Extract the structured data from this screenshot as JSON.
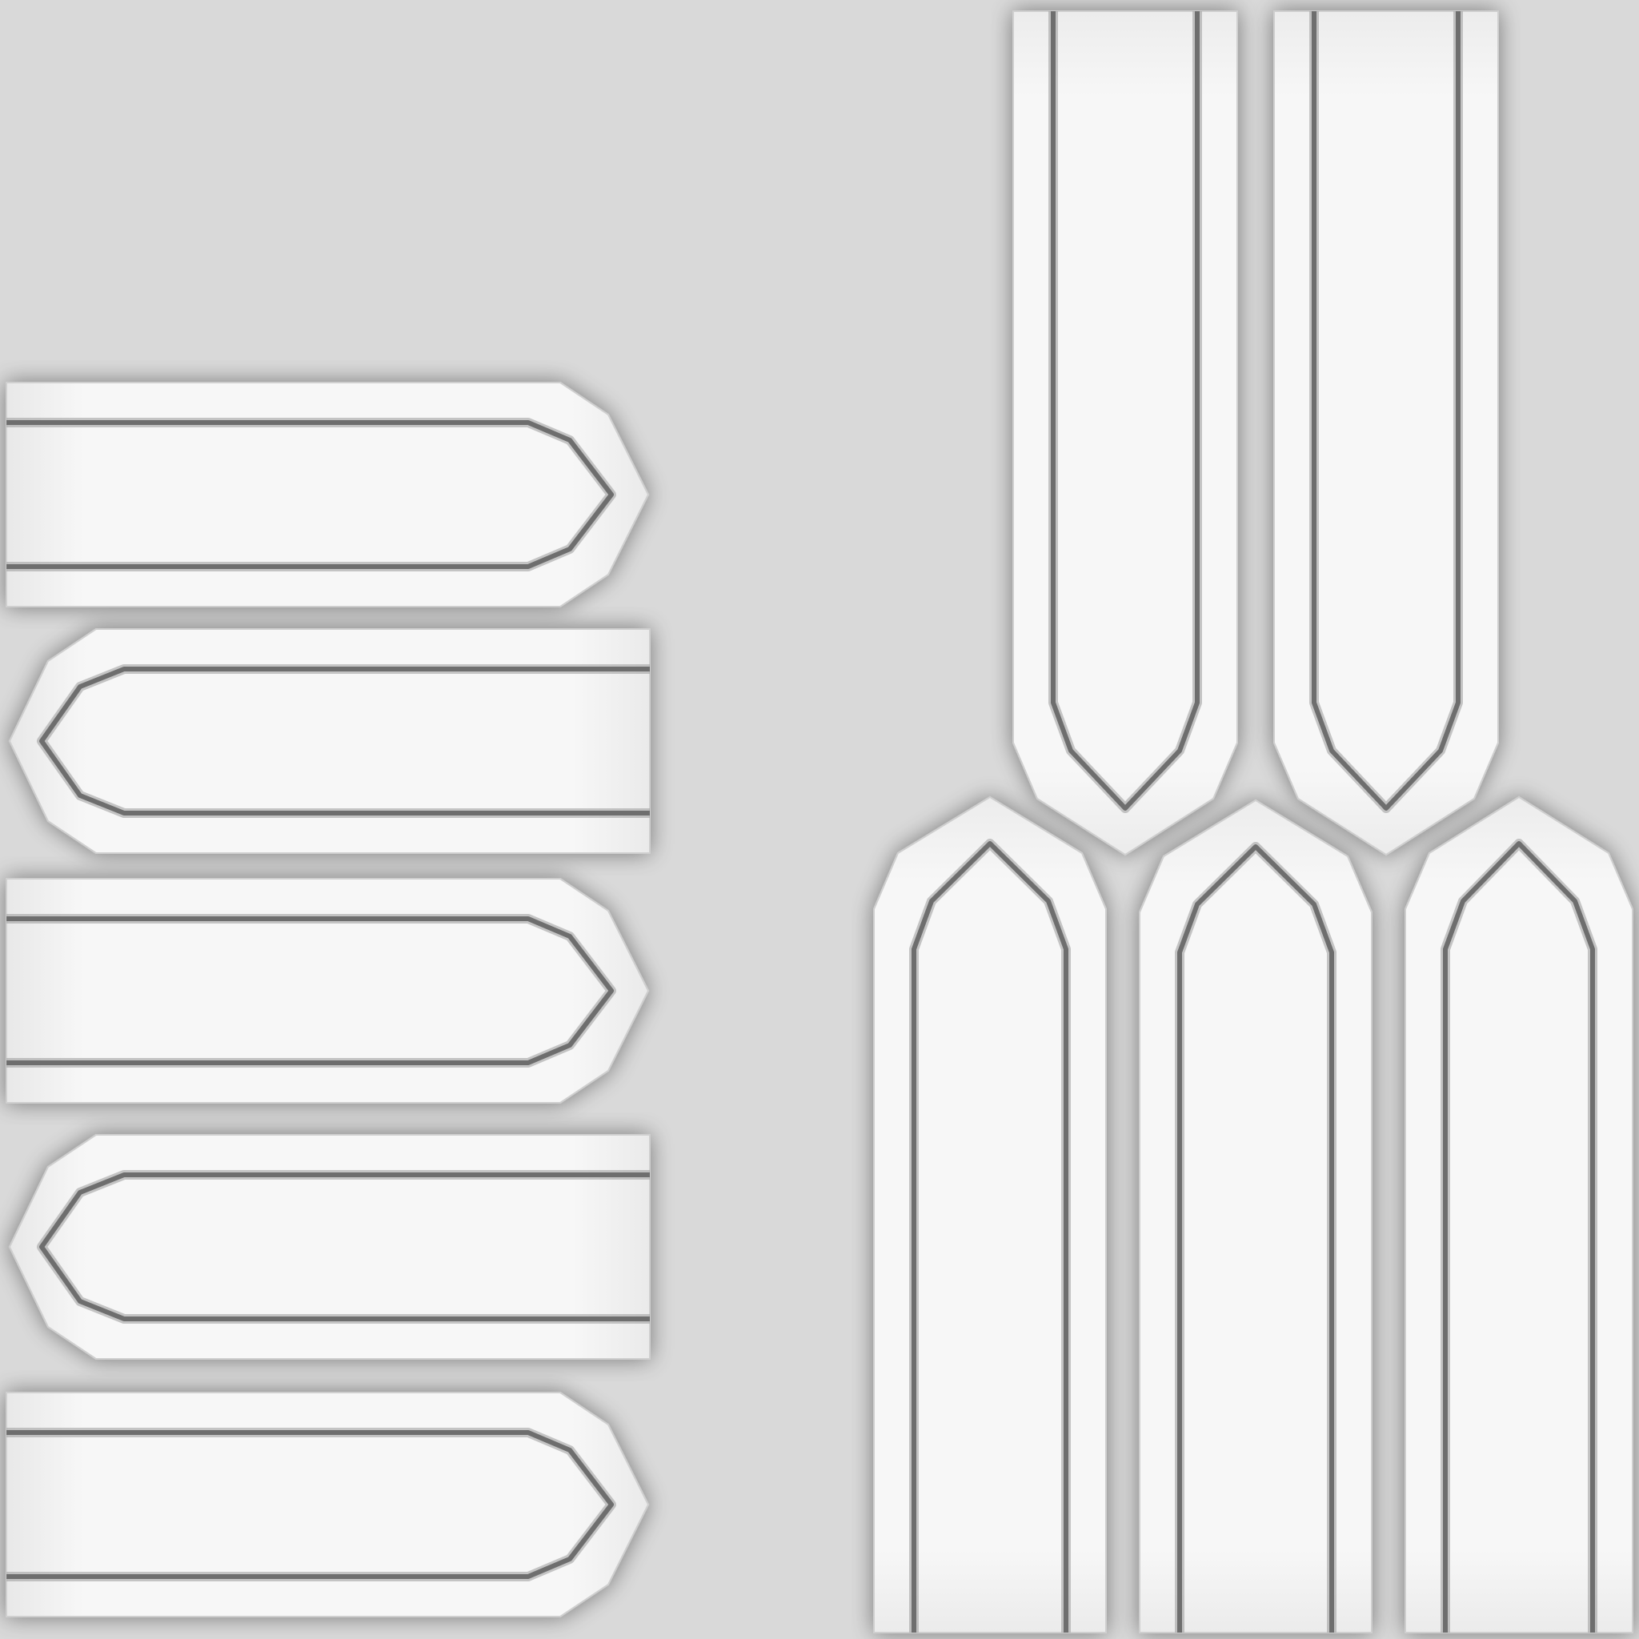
{
  "texture": {
    "description_visible_text": "",
    "colors": {
      "background": "#d9d9d9",
      "panel_fill": "#f6f6f6",
      "panel_fill_shade": "#e9e9e9",
      "groove_dark": "#6e6e6e",
      "groove_light": "#9a9a9a",
      "shadow": "#b8b8b8"
    },
    "panels": {
      "horizontal_left_count": 5,
      "vertical_top_right_count": 2,
      "vertical_bottom_right_count": 3,
      "tip_direction_pattern": [
        "right",
        "left",
        "right",
        "left",
        "right"
      ]
    }
  }
}
